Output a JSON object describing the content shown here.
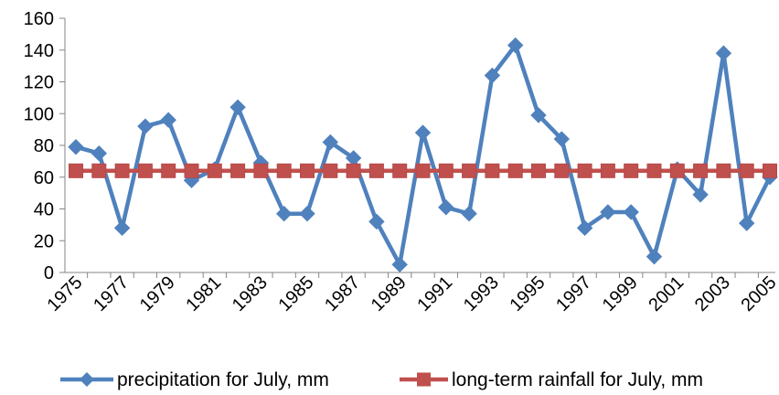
{
  "chart_data": {
    "type": "line",
    "x": [
      1975,
      1976,
      1977,
      1978,
      1979,
      1980,
      1981,
      1982,
      1983,
      1984,
      1985,
      1986,
      1987,
      1988,
      1989,
      1990,
      1991,
      1992,
      1993,
      1994,
      1995,
      1996,
      1997,
      1998,
      1999,
      2000,
      2001,
      2002,
      2003,
      2004,
      2005
    ],
    "x_tick_labels": [
      "1975",
      "1977",
      "1979",
      "1981",
      "1983",
      "1985",
      "1987",
      "1989",
      "1991",
      "1993",
      "1995",
      "1997",
      "1999",
      "2001",
      "2003",
      "2005"
    ],
    "ylim": [
      0,
      160
    ],
    "y_ticks": [
      0,
      20,
      40,
      60,
      80,
      100,
      120,
      140,
      160
    ],
    "grid": false,
    "legend_position": "bottom",
    "series": [
      {
        "name": "precipitation for July, mm",
        "color": "#4F81BD",
        "marker": "diamond",
        "values": [
          79,
          75,
          28,
          92,
          96,
          58,
          65,
          104,
          69,
          37,
          37,
          82,
          72,
          32,
          5,
          88,
          41,
          37,
          124,
          143,
          99,
          84,
          28,
          38,
          38,
          10,
          65,
          49,
          138,
          31,
          60
        ]
      },
      {
        "name": "long-term rainfall for July, mm",
        "color": "#C0504D",
        "marker": "square",
        "values": [
          64,
          64,
          64,
          64,
          64,
          64,
          64,
          64,
          64,
          64,
          64,
          64,
          64,
          64,
          64,
          64,
          64,
          64,
          64,
          64,
          64,
          64,
          64,
          64,
          64,
          64,
          64,
          64,
          64,
          64,
          64
        ]
      }
    ]
  }
}
